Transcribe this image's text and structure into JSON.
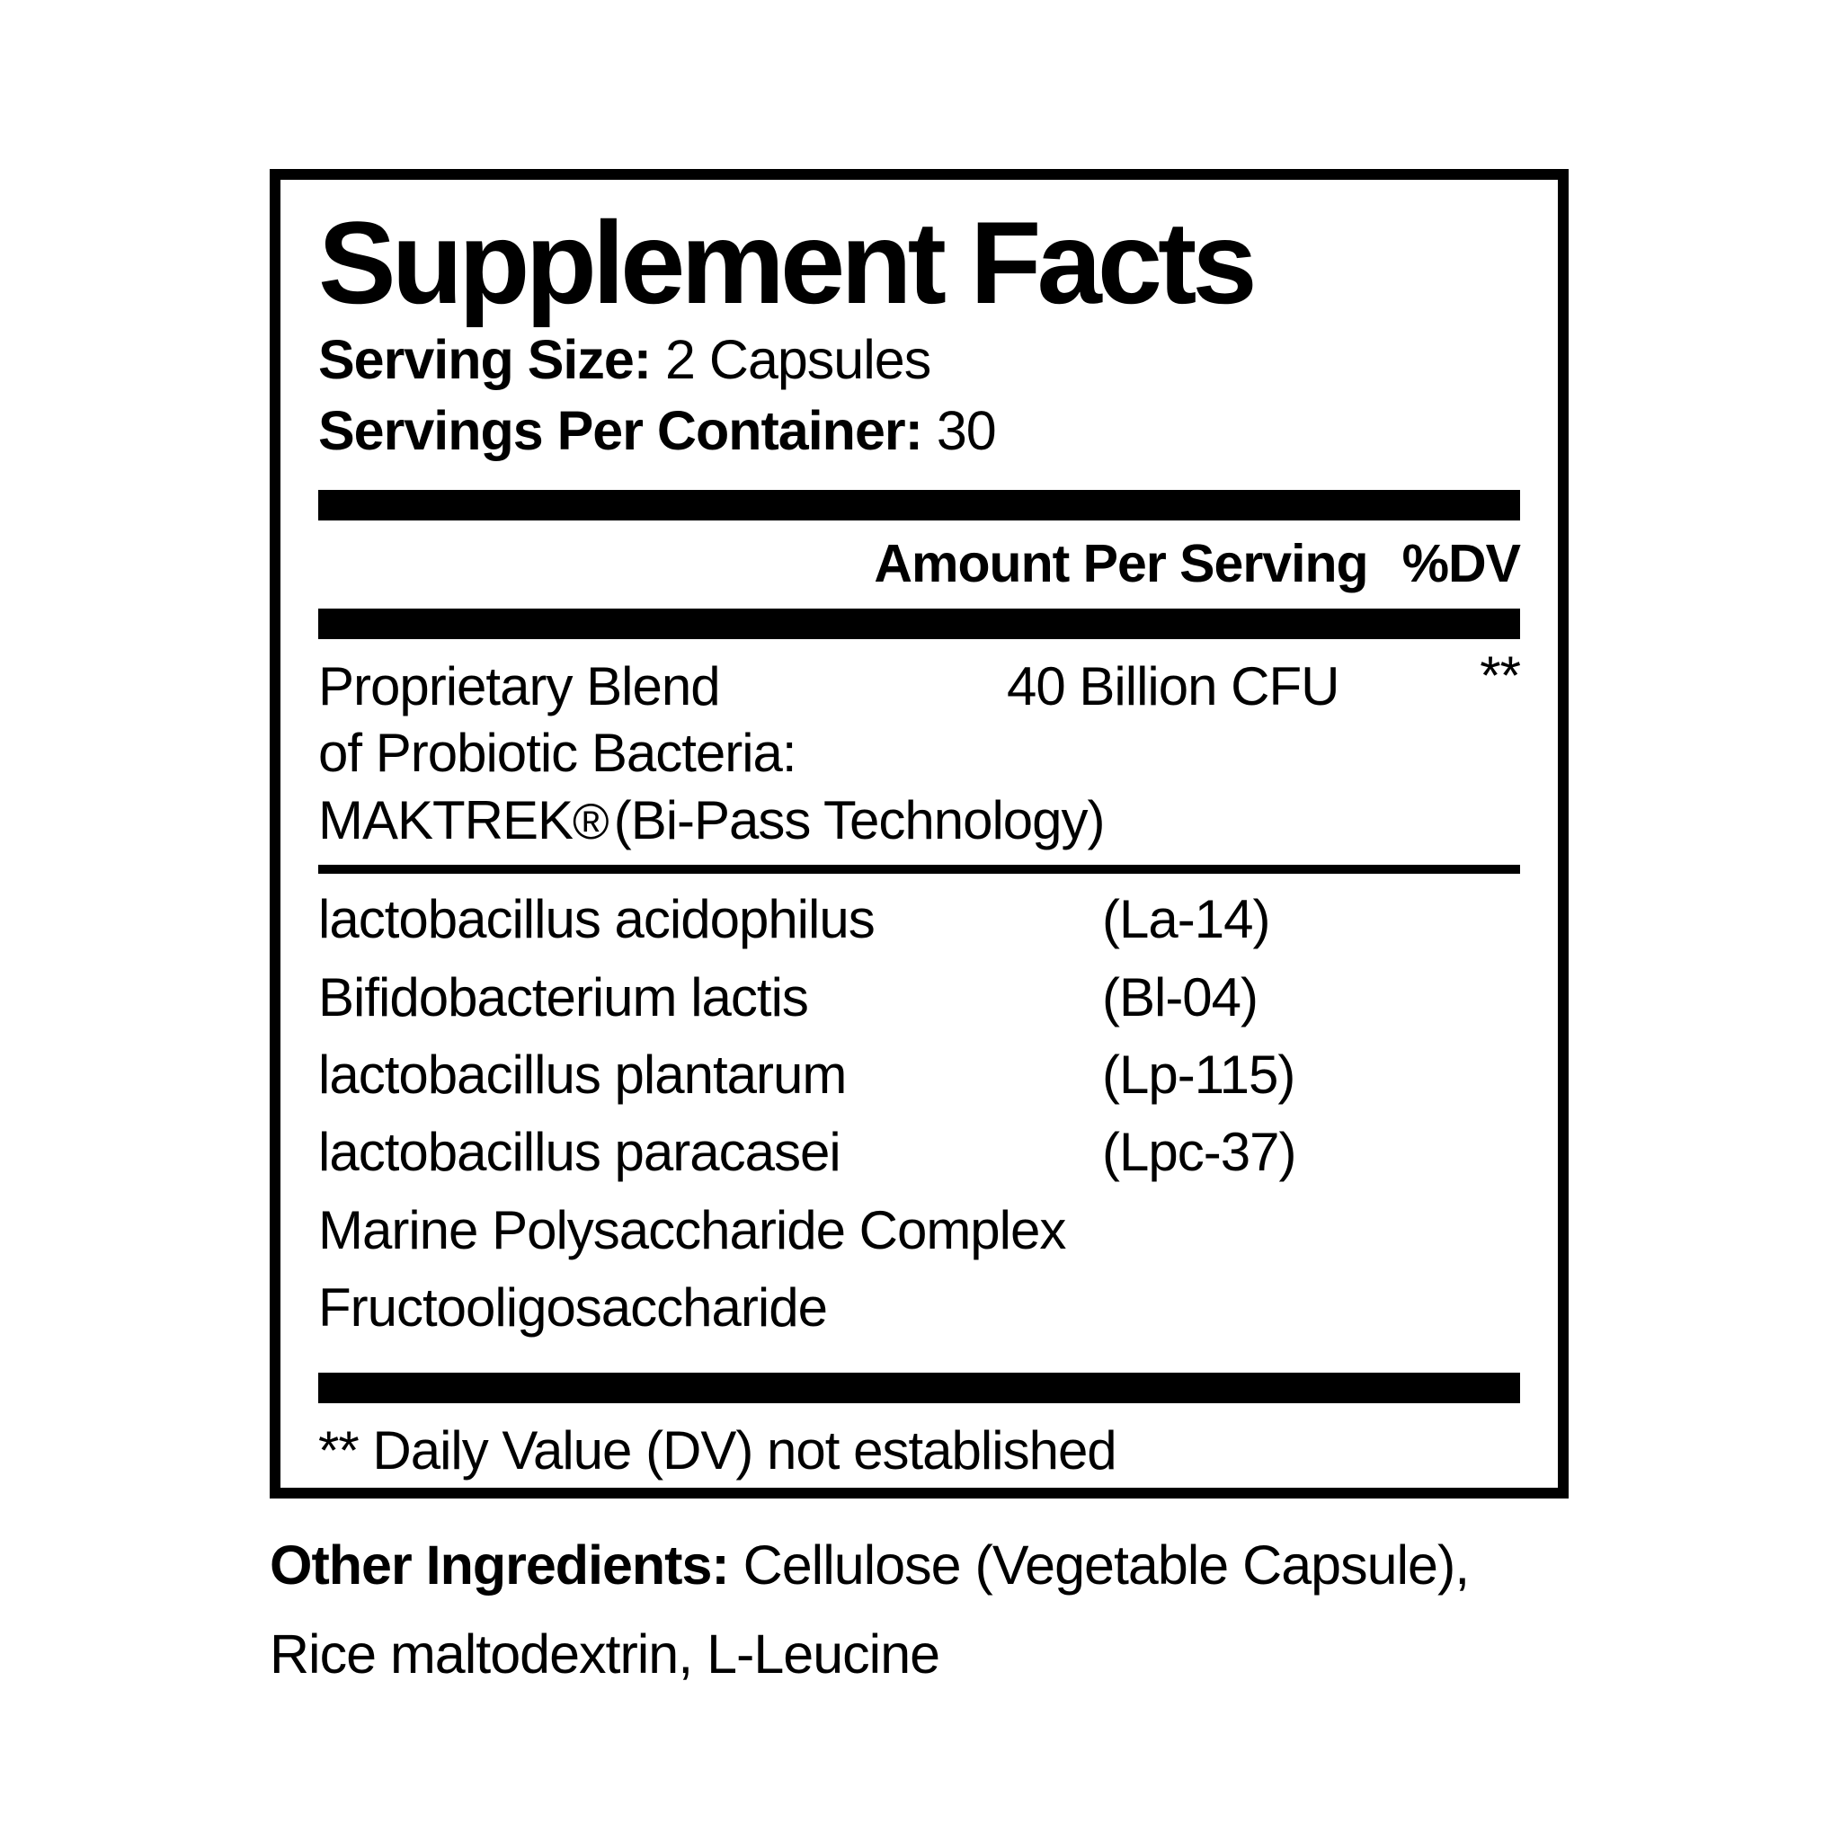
{
  "colors": {
    "ink": "#000000",
    "background": "#ffffff"
  },
  "label": {
    "title": "Supplement Facts",
    "serving_size_label": "Serving Size:",
    "serving_size_value": "2 Capsules",
    "servings_per_container_label": "Servings Per Container:",
    "servings_per_container_value": "30",
    "header": {
      "amount_col": "Amount Per Serving",
      "dv_col": "%DV"
    },
    "blend": {
      "name_line1": "Proprietary Blend",
      "name_line2": "of Probiotic Bacteria:",
      "name_line3_brand": "MAKTREK",
      "name_line3_reg": "®",
      "name_line3_rest": "(Bi-Pass Technology)",
      "amount": "40 Billion CFU",
      "dv": "**"
    },
    "ingredients": [
      {
        "name": "lactobacillus acidophilus",
        "strain": "(La-14)"
      },
      {
        "name": "Bifidobacterium lactis",
        "strain": "(Bl-04)"
      },
      {
        "name": "lactobacillus plantarum",
        "strain": "(Lp-115)"
      },
      {
        "name": "lactobacillus paracasei",
        "strain": "(Lpc-37)"
      },
      {
        "name": "Marine Polysaccharide Complex",
        "strain": ""
      },
      {
        "name": "Fructooligosaccharide",
        "strain": ""
      }
    ],
    "footnote": "** Daily Value (DV) not established"
  },
  "other_ingredients": {
    "label": "Other Ingredients:",
    "line1_rest": "Cellulose (Vegetable Capsule),",
    "line2": "Rice maltodextrin, L-Leucine"
  }
}
